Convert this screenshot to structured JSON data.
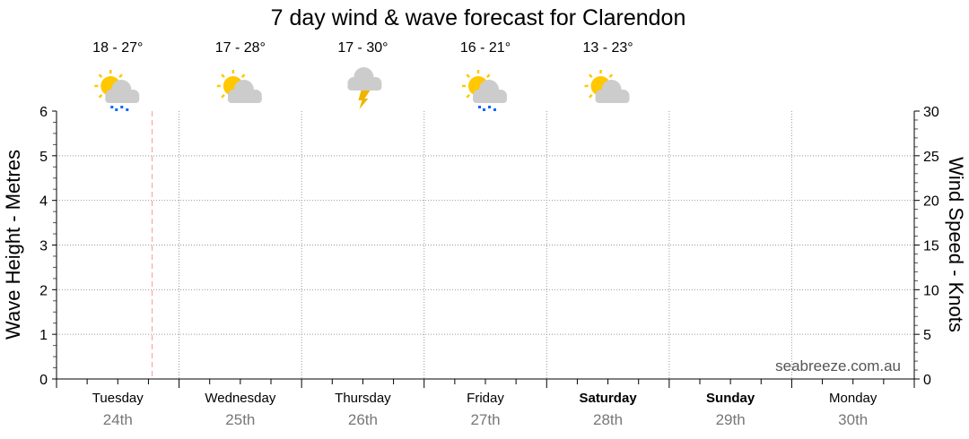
{
  "chart_data": {
    "type": "line",
    "title": "7 day wind & wave forecast for Clarendon",
    "ylabel_left": "Wave Height - Metres",
    "ylabel_right": "Wind Speed - Knots",
    "ylim_left": [
      0,
      6
    ],
    "ylim_right": [
      0,
      30
    ],
    "yticks_left": [
      "0",
      "1",
      "2",
      "3",
      "4",
      "5",
      "6"
    ],
    "yticks_right": [
      "0",
      "5",
      "10",
      "15",
      "20",
      "25",
      "30"
    ],
    "grid": true,
    "current_time_marker_day_fraction": 0.78,
    "series": [],
    "days": [
      {
        "name": "Tuesday",
        "date": "24th",
        "bold": false,
        "temp": "18 - 27°",
        "icon": "sun-cloud-showers-icon"
      },
      {
        "name": "Wednesday",
        "date": "25th",
        "bold": false,
        "temp": "17 - 28°",
        "icon": "sun-cloud-icon"
      },
      {
        "name": "Thursday",
        "date": "26th",
        "bold": false,
        "temp": "17 - 30°",
        "icon": "storm-icon"
      },
      {
        "name": "Friday",
        "date": "27th",
        "bold": false,
        "temp": "16 - 21°",
        "icon": "sun-cloud-showers-icon"
      },
      {
        "name": "Saturday",
        "date": "28th",
        "bold": true,
        "temp": "13 - 23°",
        "icon": "sun-cloud-icon"
      },
      {
        "name": "Sunday",
        "date": "29th",
        "bold": true
      },
      {
        "name": "Monday",
        "date": "30th",
        "bold": false
      }
    ],
    "watermark": "seabreeze.com.au"
  },
  "colors": {
    "sun": "#ffc800",
    "cloud": "#cccccc",
    "rain": "#0066ff",
    "bolt": "#f0b400",
    "marker": "#ff9999",
    "grid": "#999999"
  }
}
